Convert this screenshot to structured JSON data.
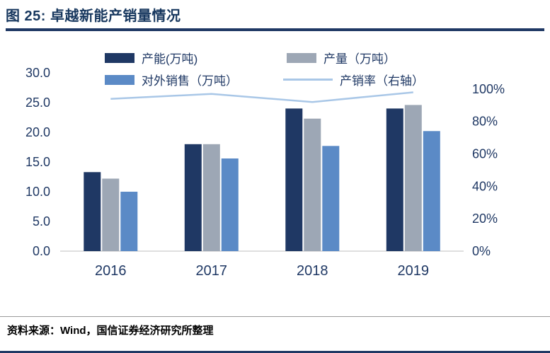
{
  "header": {
    "title": "图 25: 卓越新能产销量情况"
  },
  "footer": {
    "source": "资料来源：Wind，国信证券经济研究所整理"
  },
  "colors": {
    "navy": "#1F3864",
    "title_text": "#17375E",
    "axis_text": "#1F3864",
    "axis_line": "#BFBFBF",
    "bar_capacity": "#1F3864",
    "bar_output": "#9DA7B5",
    "bar_external_sales": "#5B8AC6",
    "line_sales_ratio": "#A9C7E7"
  },
  "chart_data": {
    "type": "bar",
    "subtype": "grouped-bars-with-line",
    "title": "卓越新能产销量情况",
    "categories": [
      "2016",
      "2017",
      "2018",
      "2019"
    ],
    "series": [
      {
        "key": "capacity",
        "name": "产能(万吨)",
        "type": "bar",
        "axis": "left",
        "color": "#1F3864",
        "values": [
          13.3,
          18.0,
          24.0,
          24.0
        ]
      },
      {
        "key": "output",
        "name": "产量（万吨）",
        "type": "bar",
        "axis": "left",
        "color": "#9DA7B5",
        "values": [
          12.2,
          18.0,
          22.3,
          24.6
        ]
      },
      {
        "key": "external-sales",
        "name": "对外销售（万吨）",
        "type": "bar",
        "axis": "left",
        "color": "#5B8AC6",
        "values": [
          10.0,
          15.6,
          17.7,
          20.2
        ]
      },
      {
        "key": "sales-ratio",
        "name": "产销率（右轴）",
        "type": "line",
        "axis": "right",
        "color": "#A9C7E7",
        "values": [
          94,
          97,
          92,
          98
        ]
      }
    ],
    "left_axis": {
      "min": 0,
      "max": 30,
      "ticks": [
        {
          "v": 0,
          "label": "0.0"
        },
        {
          "v": 5,
          "label": "5.0"
        },
        {
          "v": 10,
          "label": "10.0"
        },
        {
          "v": 15,
          "label": "15.0"
        },
        {
          "v": 20,
          "label": "20.0"
        },
        {
          "v": 25,
          "label": "25.0"
        },
        {
          "v": 30,
          "label": "30.0"
        }
      ]
    },
    "right_axis": {
      "min": 0,
      "plot_max": 110,
      "unit": "%",
      "ticks": [
        {
          "v": 0,
          "label": "0%"
        },
        {
          "v": 20,
          "label": "20%"
        },
        {
          "v": 40,
          "label": "40%"
        },
        {
          "v": 60,
          "label": "60%"
        },
        {
          "v": 80,
          "label": "80%"
        },
        {
          "v": 100,
          "label": "100%"
        }
      ]
    },
    "legend_position": "top",
    "grid": false
  }
}
